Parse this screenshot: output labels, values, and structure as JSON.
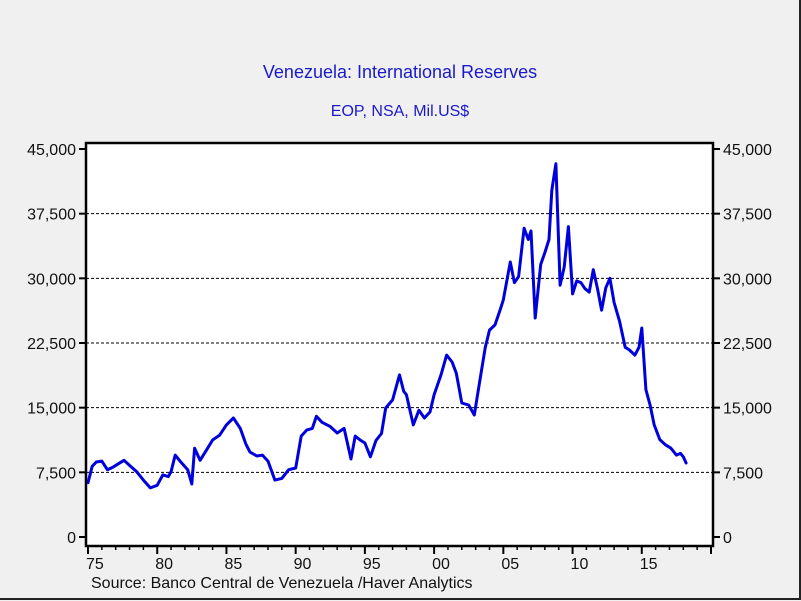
{
  "chart_data": {
    "type": "line",
    "title": "Venezuela: International Reserves",
    "subtitle": "EOP, NSA, Mil.US$",
    "source": "Source:  Banco Central de Venezuela /Haver Analytics",
    "xlabel": "",
    "ylabel": "",
    "xlim": [
      1975,
      2020
    ],
    "ylim": [
      0,
      45000
    ],
    "x_ticks": [
      {
        "value": 1975,
        "label": "75"
      },
      {
        "value": 1980,
        "label": "80"
      },
      {
        "value": 1985,
        "label": "85"
      },
      {
        "value": 1990,
        "label": "90"
      },
      {
        "value": 1995,
        "label": "95"
      },
      {
        "value": 2000,
        "label": "00"
      },
      {
        "value": 2005,
        "label": "05"
      },
      {
        "value": 2010,
        "label": "10"
      },
      {
        "value": 2015,
        "label": "15"
      }
    ],
    "y_ticks": [
      {
        "value": 0,
        "label": "0"
      },
      {
        "value": 7500,
        "label": "7,500"
      },
      {
        "value": 15000,
        "label": "15,000"
      },
      {
        "value": 22500,
        "label": "22,500"
      },
      {
        "value": 30000,
        "label": "30,000"
      },
      {
        "value": 37500,
        "label": "37,500"
      },
      {
        "value": 45000,
        "label": "45,000"
      }
    ],
    "grid": "horizontal-dashed",
    "dual_y_axis": true,
    "series": [
      {
        "name": "International Reserves",
        "color": "#0000dd",
        "points": [
          [
            1975.0,
            6300
          ],
          [
            1975.3,
            8200
          ],
          [
            1975.6,
            8700
          ],
          [
            1976.0,
            8800
          ],
          [
            1976.4,
            7800
          ],
          [
            1976.8,
            8100
          ],
          [
            1977.2,
            8500
          ],
          [
            1977.6,
            8900
          ],
          [
            1978.0,
            8300
          ],
          [
            1978.5,
            7600
          ],
          [
            1979.0,
            6600
          ],
          [
            1979.5,
            5700
          ],
          [
            1980.0,
            6000
          ],
          [
            1980.4,
            7200
          ],
          [
            1980.8,
            7000
          ],
          [
            1981.0,
            7600
          ],
          [
            1981.3,
            9500
          ],
          [
            1981.7,
            8700
          ],
          [
            1982.2,
            7800
          ],
          [
            1982.5,
            6150
          ],
          [
            1982.7,
            10300
          ],
          [
            1983.1,
            8900
          ],
          [
            1983.6,
            10200
          ],
          [
            1984.0,
            11250
          ],
          [
            1984.5,
            11800
          ],
          [
            1985.0,
            13000
          ],
          [
            1985.5,
            13800
          ],
          [
            1986.0,
            12600
          ],
          [
            1986.4,
            10800
          ],
          [
            1986.7,
            9850
          ],
          [
            1987.2,
            9400
          ],
          [
            1987.6,
            9500
          ],
          [
            1988.0,
            8800
          ],
          [
            1988.5,
            6600
          ],
          [
            1989.0,
            6800
          ],
          [
            1989.5,
            7800
          ],
          [
            1990.0,
            8000
          ],
          [
            1990.4,
            11700
          ],
          [
            1990.8,
            12400
          ],
          [
            1991.2,
            12600
          ],
          [
            1991.5,
            14000
          ],
          [
            1991.9,
            13300
          ],
          [
            1992.5,
            12800
          ],
          [
            1993.0,
            12060
          ],
          [
            1993.5,
            12600
          ],
          [
            1994.0,
            9050
          ],
          [
            1994.3,
            11700
          ],
          [
            1994.7,
            11200
          ],
          [
            1995.0,
            10900
          ],
          [
            1995.4,
            9300
          ],
          [
            1995.8,
            11200
          ],
          [
            1996.2,
            12000
          ],
          [
            1996.5,
            14960
          ],
          [
            1997.0,
            15900
          ],
          [
            1997.5,
            18800
          ],
          [
            1997.8,
            16900
          ],
          [
            1998.0,
            16500
          ],
          [
            1998.5,
            13000
          ],
          [
            1998.9,
            14700
          ],
          [
            1999.3,
            13800
          ],
          [
            1999.7,
            14500
          ],
          [
            2000.0,
            16500
          ],
          [
            2000.5,
            18800
          ],
          [
            2000.9,
            21100
          ],
          [
            2001.3,
            20300
          ],
          [
            2001.6,
            19000
          ],
          [
            2002.0,
            15540
          ],
          [
            2002.5,
            15300
          ],
          [
            2002.9,
            14150
          ],
          [
            2003.3,
            18100
          ],
          [
            2003.7,
            22000
          ],
          [
            2004.0,
            24000
          ],
          [
            2004.4,
            24600
          ],
          [
            2004.8,
            26500
          ],
          [
            2005.0,
            27500
          ],
          [
            2005.5,
            31900
          ],
          [
            2005.8,
            29500
          ],
          [
            2006.1,
            30200
          ],
          [
            2006.5,
            35800
          ],
          [
            2006.8,
            34500
          ],
          [
            2007.0,
            35500
          ],
          [
            2007.3,
            25400
          ],
          [
            2007.7,
            31600
          ],
          [
            2008.0,
            33000
          ],
          [
            2008.3,
            34500
          ],
          [
            2008.5,
            40200
          ],
          [
            2008.8,
            43300
          ],
          [
            2009.1,
            29200
          ],
          [
            2009.4,
            31300
          ],
          [
            2009.7,
            36000
          ],
          [
            2010.0,
            28200
          ],
          [
            2010.3,
            29700
          ],
          [
            2010.6,
            29500
          ],
          [
            2010.9,
            28800
          ],
          [
            2011.2,
            28400
          ],
          [
            2011.5,
            31000
          ],
          [
            2011.8,
            28800
          ],
          [
            2012.1,
            26300
          ],
          [
            2012.4,
            28900
          ],
          [
            2012.7,
            30000
          ],
          [
            2013.0,
            27200
          ],
          [
            2013.4,
            25000
          ],
          [
            2013.8,
            22000
          ],
          [
            2014.1,
            21700
          ],
          [
            2014.5,
            21100
          ],
          [
            2014.8,
            22000
          ],
          [
            2015.0,
            24240
          ],
          [
            2015.3,
            17100
          ],
          [
            2015.6,
            15300
          ],
          [
            2015.9,
            13000
          ],
          [
            2016.3,
            11300
          ],
          [
            2016.7,
            10700
          ],
          [
            2017.1,
            10300
          ],
          [
            2017.5,
            9500
          ],
          [
            2017.8,
            9700
          ],
          [
            2018.0,
            9300
          ],
          [
            2018.2,
            8580
          ]
        ]
      }
    ]
  }
}
